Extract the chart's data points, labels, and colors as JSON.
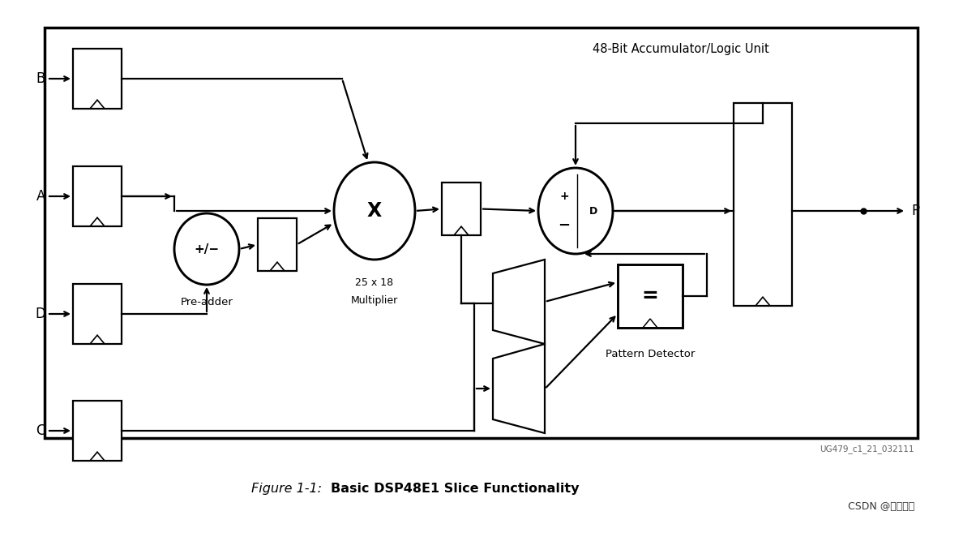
{
  "title_italic": "Figure 1-1:",
  "title_bold": "Basic DSP48E1 Slice Functionality",
  "watermark": "UG479_c1_21_032111",
  "csdn": "CSDN @黌明之光",
  "accumulator_label": "48-Bit Accumulator/Logic Unit",
  "pre_adder_label": "Pre-adder",
  "multiplier_label_1": "25 x 18",
  "multiplier_label_2": "Multiplier",
  "pattern_label": "Pattern Detector",
  "output_label": "P",
  "bg_color": "#ffffff",
  "box_color": "#000000"
}
